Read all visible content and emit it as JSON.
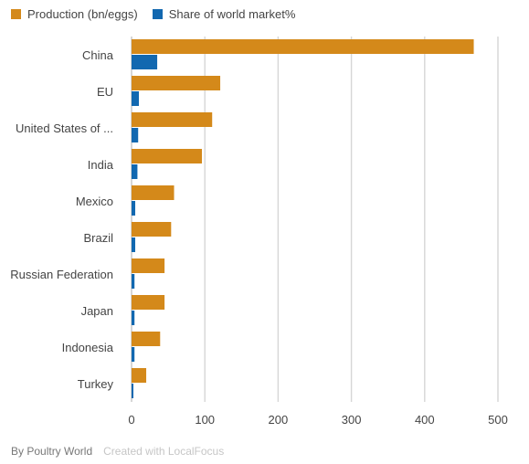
{
  "chart_data": {
    "type": "bar",
    "orientation": "horizontal",
    "title": "",
    "xlabel": "",
    "ylabel": "",
    "categories": [
      "China",
      "EU",
      "United States of ...",
      "India",
      "Mexico",
      "Brazil",
      "Russian Federation",
      "Japan",
      "Indonesia",
      "Turkey"
    ],
    "series": [
      {
        "name": "Production (bn/eggs)",
        "color": "#d4891a",
        "values": [
          467,
          121,
          110,
          96,
          58,
          54,
          45,
          45,
          39,
          20
        ]
      },
      {
        "name": "Share of world market%",
        "color": "#1268b0",
        "values": [
          35,
          10,
          9,
          8,
          5,
          5,
          4,
          4,
          4,
          1
        ]
      }
    ],
    "xlim": [
      0,
      500
    ],
    "xticks": [
      0,
      100,
      200,
      300,
      400,
      500
    ],
    "tick_labels": [
      "0",
      "100",
      "200",
      "300",
      "400",
      "500"
    ],
    "grid": "vertical",
    "legend_position": "top-left"
  },
  "footer": {
    "source": "By Poultry World",
    "credit": "Created with LocalFocus"
  }
}
